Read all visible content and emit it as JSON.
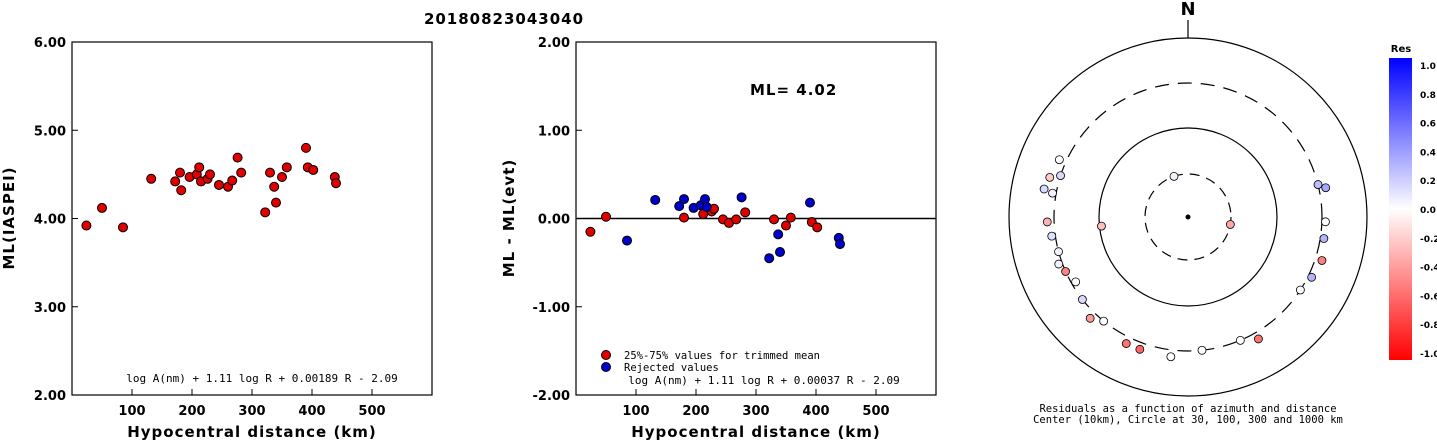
{
  "header": {
    "event_id": "20180823043040"
  },
  "chart_data": [
    {
      "type": "scatter",
      "xlabel": "Hypocentral distance (km)",
      "ylabel": "ML(IASPEI)",
      "xlim": [
        0,
        600
      ],
      "ylim": [
        2.0,
        6.0
      ],
      "xticks": [
        "100",
        "200",
        "300",
        "400",
        "500"
      ],
      "yticks": [
        "2.00",
        "3.00",
        "4.00",
        "5.00",
        "6.00"
      ],
      "formula": "log A(nm) + 1.11 log R + 0.00189 R - 2.09",
      "series": [
        {
          "color": "#e00000",
          "points": [
            [
              24,
              3.92
            ],
            [
              50,
              4.12
            ],
            [
              85,
              3.9
            ],
            [
              132,
              4.45
            ],
            [
              172,
              4.42
            ],
            [
              180,
              4.52
            ],
            [
              182,
              4.32
            ],
            [
              196,
              4.47
            ],
            [
              208,
              4.5
            ],
            [
              212,
              4.58
            ],
            [
              215,
              4.42
            ],
            [
              226,
              4.45
            ],
            [
              230,
              4.5
            ],
            [
              245,
              4.38
            ],
            [
              260,
              4.36
            ],
            [
              267,
              4.43
            ],
            [
              276,
              4.69
            ],
            [
              282,
              4.52
            ],
            [
              322,
              4.07
            ],
            [
              330,
              4.52
            ],
            [
              337,
              4.36
            ],
            [
              340,
              4.18
            ],
            [
              350,
              4.47
            ],
            [
              358,
              4.58
            ],
            [
              390,
              4.8
            ],
            [
              393,
              4.58
            ],
            [
              402,
              4.55
            ],
            [
              438,
              4.47
            ],
            [
              440,
              4.4
            ]
          ]
        }
      ]
    },
    {
      "type": "scatter",
      "xlabel": "Hypocentral distance (km)",
      "ylabel": "ML - ML(evt)",
      "xlim": [
        0,
        600
      ],
      "ylim": [
        -2.0,
        2.0
      ],
      "xticks": [
        "100",
        "200",
        "300",
        "400",
        "500"
      ],
      "yticks": [
        "-2.00",
        "-1.00",
        "0.00",
        "1.00",
        "2.00"
      ],
      "annotation": "ML= 4.02",
      "formula": "log A(nm) + 1.11 log R + 0.00037 R - 2.09",
      "legend": [
        "25%-75% values for trimmed mean",
        "Rejected values"
      ],
      "series": [
        {
          "name": "25%-75% values for trimmed mean",
          "color": "#e00000",
          "points": [
            [
              24,
              -0.15
            ],
            [
              50,
              0.02
            ],
            [
              180,
              0.01
            ],
            [
              212,
              0.05
            ],
            [
              226,
              0.08
            ],
            [
              230,
              0.11
            ],
            [
              245,
              -0.01
            ],
            [
              255,
              -0.05
            ],
            [
              267,
              -0.01
            ],
            [
              282,
              0.07
            ],
            [
              330,
              -0.01
            ],
            [
              350,
              -0.08
            ],
            [
              358,
              0.01
            ],
            [
              393,
              -0.04
            ],
            [
              402,
              -0.1
            ]
          ]
        },
        {
          "name": "Rejected values",
          "color": "#0000cc",
          "points": [
            [
              85,
              -0.25
            ],
            [
              132,
              0.21
            ],
            [
              172,
              0.14
            ],
            [
              180,
              0.22
            ],
            [
              196,
              0.12
            ],
            [
              208,
              0.15
            ],
            [
              215,
              0.22
            ],
            [
              218,
              0.13
            ],
            [
              276,
              0.24
            ],
            [
              322,
              -0.45
            ],
            [
              337,
              -0.18
            ],
            [
              340,
              -0.38
            ],
            [
              390,
              0.18
            ],
            [
              438,
              -0.22
            ],
            [
              440,
              -0.29
            ]
          ]
        }
      ]
    },
    {
      "type": "scatter",
      "subtype": "polar-residual-map",
      "north_label": "N",
      "caption_line1": "Residuals as a function of azimuth and distance",
      "caption_line2": "Center (10km), Circle at 30, 100, 300 and 1000 km",
      "colorbar_title": "Res",
      "colorbar_ticks": [
        "1.0",
        "0.8",
        "0.6",
        "0.4",
        "0.2",
        "0.0",
        "-0.2",
        "-0.4",
        "-0.6",
        "-0.8",
        "-1.0"
      ],
      "residual_points": [
        {
          "azimuth_deg": 341,
          "distance_km": 30,
          "res": 0.05
        },
        {
          "azimuth_deg": 100,
          "distance_km": 30,
          "res": -0.35
        },
        {
          "azimuth_deg": 264,
          "distance_km": 95,
          "res": -0.25
        },
        {
          "azimuth_deg": 294,
          "distance_km": 360,
          "res": 0.0
        },
        {
          "azimuth_deg": 280,
          "distance_km": 330,
          "res": 0.05
        },
        {
          "azimuth_deg": 286,
          "distance_km": 390,
          "res": -0.2
        },
        {
          "azimuth_deg": 281,
          "distance_km": 420,
          "res": 0.15
        },
        {
          "azimuth_deg": 288,
          "distance_km": 300,
          "res": 0.15
        },
        {
          "azimuth_deg": 268,
          "distance_km": 360,
          "res": -0.3
        },
        {
          "azimuth_deg": 262,
          "distance_km": 330,
          "res": 0.12
        },
        {
          "azimuth_deg": 255,
          "distance_km": 300,
          "res": 0.05
        },
        {
          "azimuth_deg": 250,
          "distance_km": 330,
          "res": 0.05
        },
        {
          "azimuth_deg": 246,
          "distance_km": 300,
          "res": -0.5
        },
        {
          "azimuth_deg": 240,
          "distance_km": 270,
          "res": 0.0
        },
        {
          "azimuth_deg": 232,
          "distance_km": 300,
          "res": 0.15
        },
        {
          "azimuth_deg": 224,
          "distance_km": 360,
          "res": -0.4
        },
        {
          "azimuth_deg": 219,
          "distance_km": 300,
          "res": 0.0
        },
        {
          "azimuth_deg": 206,
          "distance_km": 360,
          "res": -0.55
        },
        {
          "azimuth_deg": 200,
          "distance_km": 360,
          "res": -0.6
        },
        {
          "azimuth_deg": 187,
          "distance_km": 360,
          "res": 0.0
        },
        {
          "azimuth_deg": 174,
          "distance_km": 300,
          "res": 0.0
        },
        {
          "azimuth_deg": 157,
          "distance_km": 300,
          "res": 0.0
        },
        {
          "azimuth_deg": 150,
          "distance_km": 360,
          "res": -0.55
        },
        {
          "azimuth_deg": 123,
          "distance_km": 300,
          "res": 0.0
        },
        {
          "azimuth_deg": 116,
          "distance_km": 330,
          "res": 0.3
        },
        {
          "azimuth_deg": 108,
          "distance_km": 360,
          "res": -0.5
        },
        {
          "azimuth_deg": 99,
          "distance_km": 330,
          "res": 0.3
        },
        {
          "azimuth_deg": 92,
          "distance_km": 330,
          "res": 0.0
        },
        {
          "azimuth_deg": 78,
          "distance_km": 360,
          "res": 0.35
        },
        {
          "azimuth_deg": 76,
          "distance_km": 300,
          "res": 0.25
        }
      ]
    }
  ]
}
